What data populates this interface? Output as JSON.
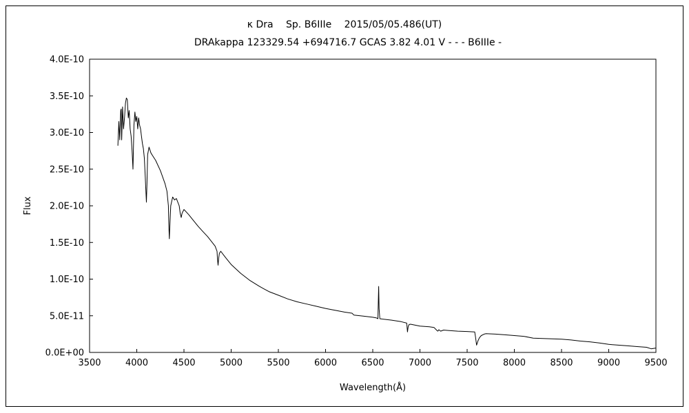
{
  "chart_data": {
    "type": "line",
    "title": "κ Dra　 Sp. B6IIIe　 2015/05/05.486(UT)",
    "subtitle": "DRAkappa 123329.54 +694716.7 GCAS 3.82 4.01 V - - - B6IIIe -",
    "xlabel": "Wavelength(Å)",
    "ylabel": "Flux",
    "xlim": [
      3500,
      9500
    ],
    "ylim": [
      0,
      4e-10
    ],
    "xticks": [
      "3500",
      "4000",
      "4500",
      "5000",
      "5500",
      "6000",
      "6500",
      "7000",
      "7500",
      "8000",
      "8500",
      "9000",
      "9500"
    ],
    "yticks": [
      "0.0E+00",
      "5.0E-11",
      "1.0E-10",
      "1.5E-10",
      "2.0E-10",
      "2.5E-10",
      "3.0E-10",
      "3.5E-10",
      "4.0E-10"
    ],
    "grid": false,
    "legend": "none",
    "line_color": "#000000",
    "series": [
      {
        "x": [
          3800,
          3810,
          3820,
          3830,
          3835,
          3840,
          3850,
          3860,
          3870,
          3880,
          3890,
          3900,
          3910,
          3920,
          3930,
          3940,
          3950,
          3960,
          3970,
          3980,
          3990,
          4000,
          4010,
          4020,
          4030,
          4040,
          4050,
          4060,
          4070,
          4080,
          4090,
          4095,
          4102,
          4108,
          4115,
          4130,
          4150,
          4170,
          4200,
          4250,
          4300,
          4320,
          4335,
          4340,
          4345,
          4350,
          4360,
          4380,
          4400,
          4420,
          4450,
          4460,
          4471,
          4480,
          4500,
          4550,
          4600,
          4650,
          4700,
          4750,
          4800,
          4830,
          4850,
          4855,
          4861,
          4867,
          4875,
          4890,
          4920,
          4950,
          5000,
          5100,
          5200,
          5300,
          5400,
          5500,
          5600,
          5700,
          5800,
          5900,
          6000,
          6100,
          6200,
          6280,
          6300,
          6400,
          6500,
          6540,
          6555,
          6560,
          6563,
          6567,
          6575,
          6600,
          6700,
          6800,
          6860,
          6868,
          6875,
          6885,
          6900,
          7000,
          7100,
          7150,
          7180,
          7190,
          7200,
          7220,
          7250,
          7300,
          7400,
          7500,
          7580,
          7590,
          7600,
          7605,
          7615,
          7630,
          7650,
          7680,
          7700,
          7800,
          7900,
          8000,
          8100,
          8200,
          8300,
          8400,
          8500,
          8600,
          8700,
          8800,
          8900,
          9000,
          9100,
          9200,
          9300,
          9400,
          9450,
          9500
        ],
        "y": [
          2.82e-10,
          3.15e-10,
          2.9e-10,
          3.3e-10,
          3.32e-10,
          2.9e-10,
          3.35e-10,
          3.05e-10,
          3.2e-10,
          3.4e-10,
          3.47e-10,
          3.45e-10,
          3.2e-10,
          3.3e-10,
          3.05e-10,
          2.95e-10,
          2.75e-10,
          2.5e-10,
          3.1e-10,
          3.28e-10,
          3.15e-10,
          3.22e-10,
          3.05e-10,
          3.2e-10,
          3.1e-10,
          3.05e-10,
          2.95e-10,
          2.85e-10,
          2.78e-10,
          2.65e-10,
          2.4e-10,
          2.25e-10,
          2.05e-10,
          2.3e-10,
          2.7e-10,
          2.8e-10,
          2.72e-10,
          2.68e-10,
          2.62e-10,
          2.48e-10,
          2.3e-10,
          2.2e-10,
          2e-10,
          1.72e-10,
          1.55e-10,
          1.7e-10,
          2e-10,
          2.12e-10,
          2.08e-10,
          2.1e-10,
          2e-10,
          1.9e-10,
          1.84e-10,
          1.9e-10,
          1.95e-10,
          1.88e-10,
          1.8e-10,
          1.72e-10,
          1.65e-10,
          1.58e-10,
          1.5e-10,
          1.45e-10,
          1.38e-10,
          1.28e-10,
          1.19e-10,
          1.28e-10,
          1.35e-10,
          1.38e-10,
          1.33e-10,
          1.28e-10,
          1.2e-10,
          1.08e-10,
          9.8e-11,
          9e-11,
          8.3e-11,
          7.8e-11,
          7.3e-11,
          6.9e-11,
          6.6e-11,
          6.3e-11,
          6e-11,
          5.75e-11,
          5.5e-11,
          5.35e-11,
          5.1e-11,
          4.95e-11,
          4.8e-11,
          4.7e-11,
          4.6e-11,
          7.5e-11,
          9e-11,
          6e-11,
          4.6e-11,
          4.55e-11,
          4.4e-11,
          4.2e-11,
          4e-11,
          2.8e-11,
          3.5e-11,
          3.8e-11,
          3.85e-11,
          3.6e-11,
          3.5e-11,
          3.4e-11,
          3e-11,
          2.9e-11,
          3.1e-11,
          2.9e-11,
          3.05e-11,
          3e-11,
          2.9e-11,
          2.85e-11,
          2.8e-11,
          2e-11,
          1e-11,
          1.2e-11,
          1.6e-11,
          2e-11,
          2.3e-11,
          2.5e-11,
          2.55e-11,
          2.5e-11,
          2.4e-11,
          2.3e-11,
          2.2e-11,
          1.95e-11,
          1.9e-11,
          1.85e-11,
          1.8e-11,
          1.7e-11,
          1.55e-11,
          1.45e-11,
          1.3e-11,
          1.1e-11,
          1e-11,
          9e-12,
          8e-12,
          7e-12,
          5e-12,
          6e-12
        ]
      }
    ]
  }
}
